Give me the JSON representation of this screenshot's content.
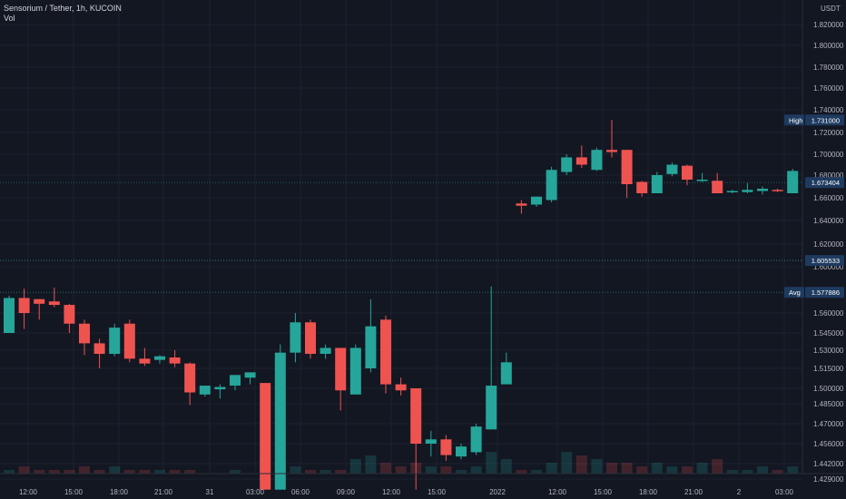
{
  "legend": {
    "title": "Sensorium / Tether, 1h, KUCOIN",
    "vol": "Vol"
  },
  "colors": {
    "background": "#131722",
    "grid": "#1e2230",
    "up": "#26a69a",
    "down": "#ef5350",
    "text": "#b2b5be",
    "label_bg": "#2962ff"
  },
  "axis": {
    "currency": "USDT",
    "y_ticks": [
      "1.820000",
      "1.800000",
      "1.780000",
      "1.760000",
      "1.740000",
      "1.720000",
      "1.700000",
      "1.680000",
      "1.660000",
      "1.640000",
      "1.620000",
      "1.600000",
      "1.560000",
      "1.545000",
      "1.530000",
      "1.515000",
      "1.500000",
      "1.485000",
      "1.470000",
      "1.456000",
      "1.442000",
      "1.429000"
    ],
    "x_ticks": [
      "12:00",
      "15:00",
      "18:00",
      "21:00",
      "31",
      "03:00",
      "06:00",
      "09:00",
      "12:00",
      "15:00",
      "2022",
      "12:00",
      "15:00",
      "18:00",
      "21:00",
      "2",
      "03:00"
    ]
  },
  "markers": {
    "high_label": "High",
    "high_value": "1.731000",
    "last_value": "1.673404",
    "line_value": "1.605533",
    "avg_label": "Avg",
    "avg_value": "1.577886"
  },
  "chart_data": {
    "type": "candlestick",
    "title": "Sensorium / Tether, 1h, KUCOIN",
    "y_scale": "piecewise (chart gap between segments)",
    "grid": true,
    "candles": [
      {
        "o": 1.545,
        "h": 1.575,
        "l": 1.545,
        "c": 1.573
      },
      {
        "o": 1.573,
        "h": 1.581,
        "l": 1.548,
        "c": 1.56
      },
      {
        "o": 1.572,
        "h": 1.572,
        "l": 1.555,
        "c": 1.568
      },
      {
        "o": 1.57,
        "h": 1.582,
        "l": 1.565,
        "c": 1.567
      },
      {
        "o": 1.567,
        "h": 1.568,
        "l": 1.545,
        "c": 1.552
      },
      {
        "o": 1.552,
        "h": 1.555,
        "l": 1.526,
        "c": 1.536
      },
      {
        "o": 1.536,
        "h": 1.54,
        "l": 1.515,
        "c": 1.527
      },
      {
        "o": 1.527,
        "h": 1.552,
        "l": 1.525,
        "c": 1.549
      },
      {
        "o": 1.552,
        "h": 1.555,
        "l": 1.52,
        "c": 1.523
      },
      {
        "o": 1.523,
        "h": 1.532,
        "l": 1.517,
        "c": 1.519
      },
      {
        "o": 1.522,
        "h": 1.526,
        "l": 1.519,
        "c": 1.525
      },
      {
        "o": 1.524,
        "h": 1.53,
        "l": 1.516,
        "c": 1.519
      },
      {
        "o": 1.519,
        "h": 1.52,
        "l": 1.484,
        "c": 1.496
      },
      {
        "o": 1.494,
        "h": 1.502,
        "l": 1.492,
        "c": 1.502
      },
      {
        "o": 1.499,
        "h": 1.503,
        "l": 1.49,
        "c": 1.501
      },
      {
        "o": 1.502,
        "h": 1.51,
        "l": 1.498,
        "c": 1.51
      },
      {
        "o": 1.508,
        "h": 1.512,
        "l": 1.503,
        "c": 1.512
      },
      {
        "o": 1.504,
        "h": 1.504,
        "l": 1.42,
        "c": 1.42
      },
      {
        "o": 1.42,
        "h": 1.535,
        "l": 1.42,
        "c": 1.528
      },
      {
        "o": 1.528,
        "h": 1.56,
        "l": 1.52,
        "c": 1.553
      },
      {
        "o": 1.553,
        "h": 1.555,
        "l": 1.523,
        "c": 1.527
      },
      {
        "o": 1.527,
        "h": 1.535,
        "l": 1.523,
        "c": 1.532
      },
      {
        "o": 1.532,
        "h": 1.532,
        "l": 1.48,
        "c": 1.498
      },
      {
        "o": 1.494,
        "h": 1.535,
        "l": 1.494,
        "c": 1.532
      },
      {
        "o": 1.515,
        "h": 1.572,
        "l": 1.512,
        "c": 1.55
      },
      {
        "o": 1.555,
        "h": 1.558,
        "l": 1.495,
        "c": 1.503
      },
      {
        "o": 1.503,
        "h": 1.508,
        "l": 1.493,
        "c": 1.498
      },
      {
        "o": 1.5,
        "h": 1.5,
        "l": 1.42,
        "c": 1.456
      },
      {
        "o": 1.456,
        "h": 1.465,
        "l": 1.447,
        "c": 1.459
      },
      {
        "o": 1.459,
        "h": 1.462,
        "l": 1.444,
        "c": 1.448
      },
      {
        "o": 1.447,
        "h": 1.456,
        "l": 1.445,
        "c": 1.454
      },
      {
        "o": 1.45,
        "h": 1.47,
        "l": 1.448,
        "c": 1.468
      },
      {
        "o": 1.466,
        "h": 1.583,
        "l": 1.466,
        "c": 1.502
      },
      {
        "o": 1.503,
        "h": 1.528,
        "l": 1.503,
        "c": 1.52
      },
      {
        "o": 1.655,
        "h": 1.658,
        "l": 1.646,
        "c": 1.653
      },
      {
        "o": 1.654,
        "h": 1.661,
        "l": 1.652,
        "c": 1.661
      },
      {
        "o": 1.658,
        "h": 1.688,
        "l": 1.656,
        "c": 1.685
      },
      {
        "o": 1.683,
        "h": 1.7,
        "l": 1.68,
        "c": 1.697
      },
      {
        "o": 1.697,
        "h": 1.708,
        "l": 1.687,
        "c": 1.69
      },
      {
        "o": 1.685,
        "h": 1.706,
        "l": 1.684,
        "c": 1.704
      },
      {
        "o": 1.704,
        "h": 1.731,
        "l": 1.697,
        "c": 1.702
      },
      {
        "o": 1.704,
        "h": 1.704,
        "l": 1.66,
        "c": 1.672
      },
      {
        "o": 1.674,
        "h": 1.675,
        "l": 1.661,
        "c": 1.664
      },
      {
        "o": 1.664,
        "h": 1.683,
        "l": 1.664,
        "c": 1.68
      },
      {
        "o": 1.681,
        "h": 1.692,
        "l": 1.679,
        "c": 1.69
      },
      {
        "o": 1.689,
        "h": 1.69,
        "l": 1.671,
        "c": 1.676
      },
      {
        "o": 1.675,
        "h": 1.682,
        "l": 1.674,
        "c": 1.676
      },
      {
        "o": 1.675,
        "h": 1.682,
        "l": 1.664,
        "c": 1.664
      },
      {
        "o": 1.666,
        "h": 1.667,
        "l": 1.664,
        "c": 1.666
      },
      {
        "o": 1.665,
        "h": 1.673,
        "l": 1.664,
        "c": 1.667
      },
      {
        "o": 1.666,
        "h": 1.67,
        "l": 1.663,
        "c": 1.668
      },
      {
        "o": 1.667,
        "h": 1.668,
        "l": 1.665,
        "c": 1.666
      },
      {
        "o": 1.664,
        "h": 1.686,
        "l": 1.664,
        "c": 1.684
      },
      {
        "o": 1.683,
        "h": 1.684,
        "l": 1.667,
        "c": 1.671
      },
      {
        "o": 1.673,
        "h": 1.675,
        "l": 1.664,
        "c": 1.673
      }
    ],
    "volume": [
      1,
      2,
      1,
      1,
      1,
      2,
      1,
      2,
      1,
      1,
      1,
      1,
      1,
      0,
      0,
      1,
      0,
      4,
      3,
      2,
      1,
      1,
      1,
      4,
      5,
      3,
      2,
      3,
      2,
      2,
      1,
      2,
      6,
      4,
      1,
      1,
      3,
      6,
      5,
      4,
      3,
      3,
      2,
      3,
      2,
      2,
      3,
      4,
      1,
      1,
      2,
      1,
      2,
      3,
      2
    ]
  }
}
